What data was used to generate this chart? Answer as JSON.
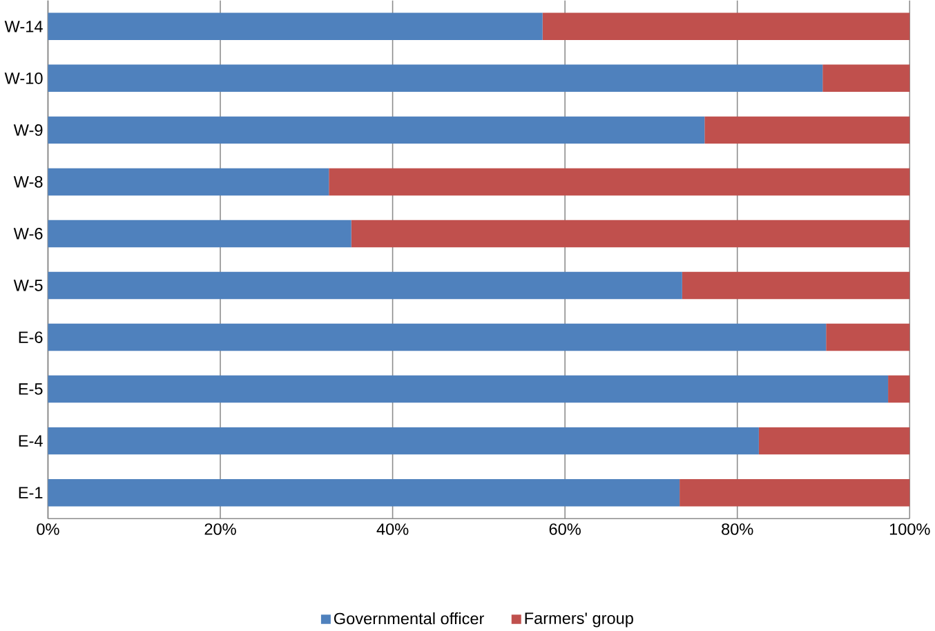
{
  "chart_data": {
    "type": "bar",
    "orientation": "horizontal",
    "stacked": true,
    "categories": [
      "W-14",
      "W-10",
      "W-9",
      "W-8",
      "W-6",
      "W-5",
      "E-6",
      "E-5",
      "E-4",
      "E-1"
    ],
    "series": [
      {
        "name": "Governmental officer",
        "color": "#4f81bd",
        "values": [
          57.4,
          89.9,
          76.2,
          32.6,
          35.2,
          73.6,
          90.3,
          97.5,
          82.5,
          73.3
        ]
      },
      {
        "name": "Farmers' group",
        "color": "#c0504d",
        "values": [
          42.6,
          10.1,
          23.8,
          67.4,
          64.8,
          26.4,
          9.7,
          2.5,
          17.5,
          26.7
        ]
      }
    ],
    "xlim": [
      0,
      100
    ],
    "xticks": [
      {
        "value": 0,
        "label": "0%"
      },
      {
        "value": 20,
        "label": "20%"
      },
      {
        "value": 40,
        "label": "40%"
      },
      {
        "value": 60,
        "label": "60%"
      },
      {
        "value": 80,
        "label": "80%"
      },
      {
        "value": 100,
        "label": "100%"
      }
    ],
    "grid": "x",
    "legend": "bottom"
  }
}
